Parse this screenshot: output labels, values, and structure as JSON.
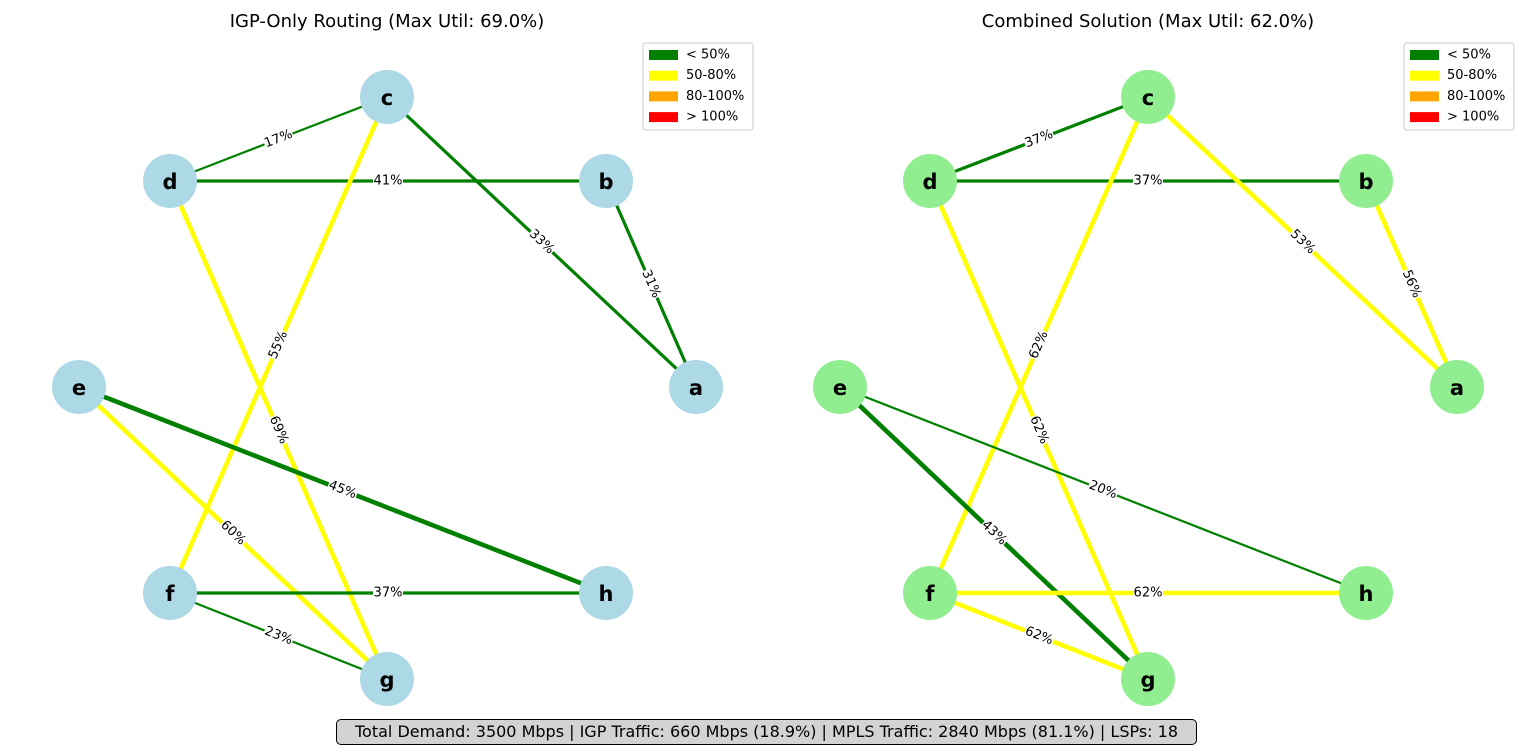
{
  "legend": [
    {
      "label": "< 50%",
      "color": "#008000"
    },
    {
      "label": "50-80%",
      "color": "#ffff00"
    },
    {
      "label": "80-100%",
      "color": "#ffa500"
    },
    {
      "label": "> 100%",
      "color": "#ff0000"
    }
  ],
  "panels": [
    {
      "id": "igp",
      "title": "IGP-Only Routing (Max Util: 69.0%)",
      "node_color": "#add8e6",
      "nodes": [
        "a",
        "b",
        "c",
        "d",
        "e",
        "f",
        "g",
        "h"
      ],
      "edges": [
        {
          "from": "d",
          "to": "c",
          "label": "17%",
          "color": "#008000",
          "weight": "thin"
        },
        {
          "from": "d",
          "to": "b",
          "label": "41%",
          "color": "#008000",
          "weight": "medium"
        },
        {
          "from": "c",
          "to": "a",
          "label": "33%",
          "color": "#008000",
          "weight": "medium"
        },
        {
          "from": "b",
          "to": "a",
          "label": "31%",
          "color": "#008000",
          "weight": "medium"
        },
        {
          "from": "c",
          "to": "f",
          "label": "55%",
          "color": "#ffff00",
          "weight": "thick"
        },
        {
          "from": "d",
          "to": "g",
          "label": "69%",
          "color": "#ffff00",
          "weight": "thick"
        },
        {
          "from": "e",
          "to": "h",
          "label": "45%",
          "color": "#008000",
          "weight": "thick"
        },
        {
          "from": "e",
          "to": "g",
          "label": "60%",
          "color": "#ffff00",
          "weight": "thick"
        },
        {
          "from": "f",
          "to": "h",
          "label": "37%",
          "color": "#008000",
          "weight": "medium"
        },
        {
          "from": "f",
          "to": "g",
          "label": "23%",
          "color": "#008000",
          "weight": "thin"
        }
      ]
    },
    {
      "id": "combined",
      "title": "Combined Solution (Max Util: 62.0%)",
      "node_color": "#90ee90",
      "nodes": [
        "a",
        "b",
        "c",
        "d",
        "e",
        "f",
        "g",
        "h"
      ],
      "edges": [
        {
          "from": "d",
          "to": "c",
          "label": "37%",
          "color": "#008000",
          "weight": "medium"
        },
        {
          "from": "d",
          "to": "b",
          "label": "37%",
          "color": "#008000",
          "weight": "medium"
        },
        {
          "from": "c",
          "to": "a",
          "label": "53%",
          "color": "#ffff00",
          "weight": "thick"
        },
        {
          "from": "b",
          "to": "a",
          "label": "56%",
          "color": "#ffff00",
          "weight": "thick"
        },
        {
          "from": "c",
          "to": "f",
          "label": "62%",
          "color": "#ffff00",
          "weight": "thick"
        },
        {
          "from": "d",
          "to": "g",
          "label": "62%",
          "color": "#ffff00",
          "weight": "thick"
        },
        {
          "from": "e",
          "to": "h",
          "label": "20%",
          "color": "#008000",
          "weight": "thin"
        },
        {
          "from": "e",
          "to": "g",
          "label": "43%",
          "color": "#008000",
          "weight": "thick"
        },
        {
          "from": "f",
          "to": "h",
          "label": "62%",
          "color": "#ffff00",
          "weight": "thick"
        },
        {
          "from": "f",
          "to": "g",
          "label": "62%",
          "color": "#ffff00",
          "weight": "thick"
        }
      ]
    }
  ],
  "footer": "Total Demand: 3500 Mbps | IGP Traffic: 660 Mbps (18.9%) | MPLS Traffic: 2840 Mbps (81.1%) | LSPs: 18"
}
